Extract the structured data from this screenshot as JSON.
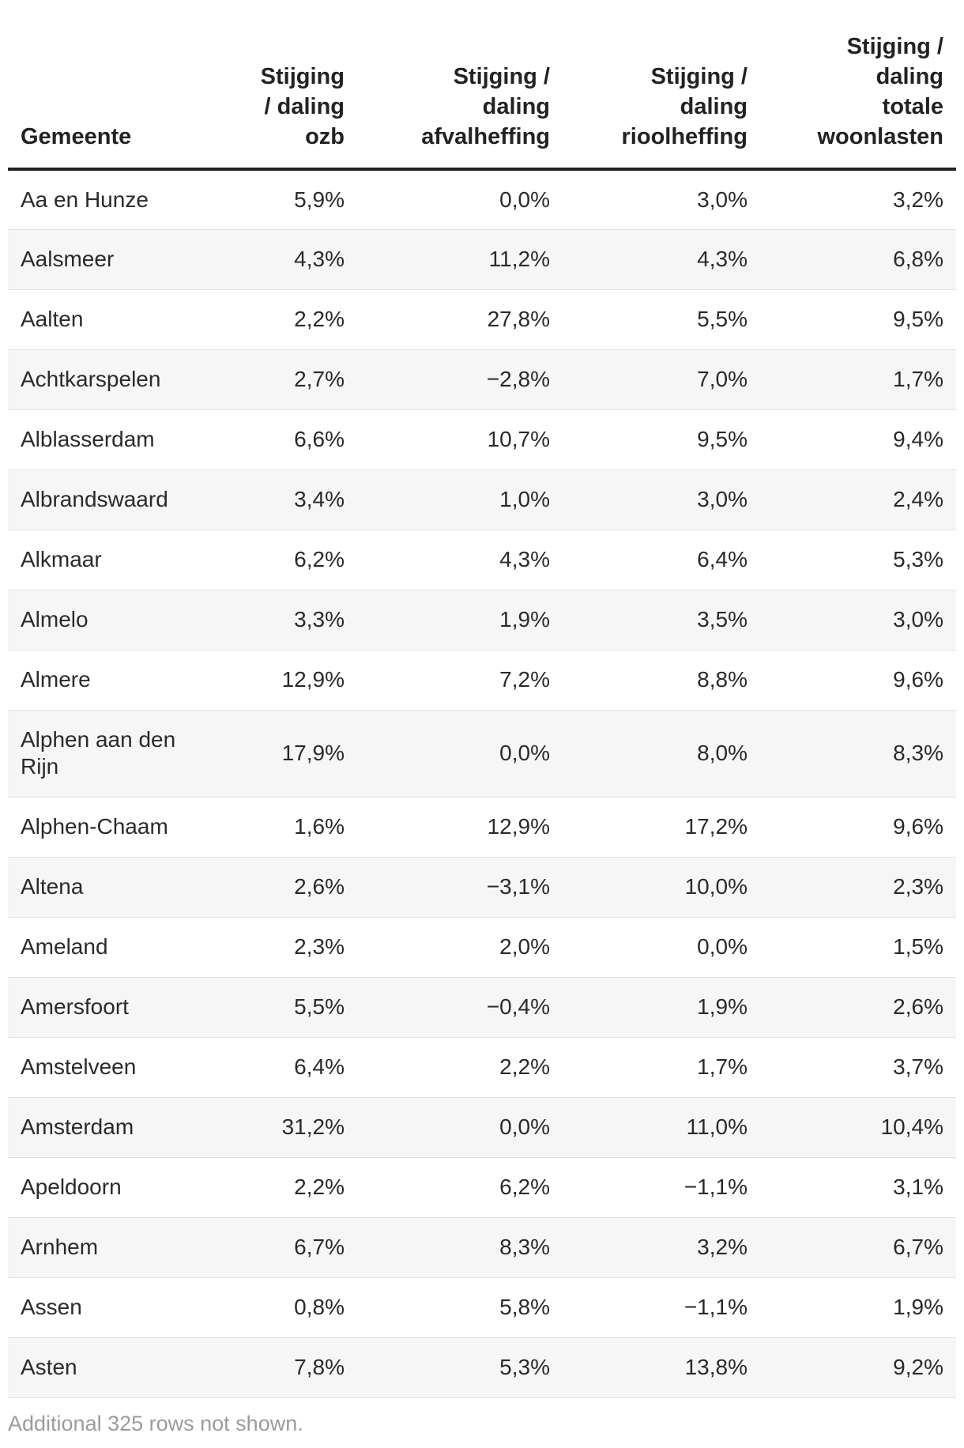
{
  "table": {
    "headers": [
      "Gemeente",
      "Stijging\n/ daling\nozb",
      "Stijging /\ndaling\nafvalheffing",
      "Stijging /\ndaling\nrioolheffing",
      "Stijging /\ndaling\ntotale\nwoonlasten"
    ],
    "rows": [
      [
        "Aa en Hunze",
        "5,9%",
        "0,0%",
        "3,0%",
        "3,2%"
      ],
      [
        "Aalsmeer",
        "4,3%",
        "11,2%",
        "4,3%",
        "6,8%"
      ],
      [
        "Aalten",
        "2,2%",
        "27,8%",
        "5,5%",
        "9,5%"
      ],
      [
        "Achtkarspelen",
        "2,7%",
        "−2,8%",
        "7,0%",
        "1,7%"
      ],
      [
        "Alblasserdam",
        "6,6%",
        "10,7%",
        "9,5%",
        "9,4%"
      ],
      [
        "Albrandswaard",
        "3,4%",
        "1,0%",
        "3,0%",
        "2,4%"
      ],
      [
        "Alkmaar",
        "6,2%",
        "4,3%",
        "6,4%",
        "5,3%"
      ],
      [
        "Almelo",
        "3,3%",
        "1,9%",
        "3,5%",
        "3,0%"
      ],
      [
        "Almere",
        "12,9%",
        "7,2%",
        "8,8%",
        "9,6%"
      ],
      [
        "Alphen aan den Rijn",
        "17,9%",
        "0,0%",
        "8,0%",
        "8,3%"
      ],
      [
        "Alphen-Chaam",
        "1,6%",
        "12,9%",
        "17,2%",
        "9,6%"
      ],
      [
        "Altena",
        "2,6%",
        "−3,1%",
        "10,0%",
        "2,3%"
      ],
      [
        "Ameland",
        "2,3%",
        "2,0%",
        "0,0%",
        "1,5%"
      ],
      [
        "Amersfoort",
        "5,5%",
        "−0,4%",
        "1,9%",
        "2,6%"
      ],
      [
        "Amstelveen",
        "6,4%",
        "2,2%",
        "1,7%",
        "3,7%"
      ],
      [
        "Amsterdam",
        "31,2%",
        "0,0%",
        "11,0%",
        "10,4%"
      ],
      [
        "Apeldoorn",
        "2,2%",
        "6,2%",
        "−1,1%",
        "3,1%"
      ],
      [
        "Arnhem",
        "6,7%",
        "8,3%",
        "3,2%",
        "6,7%"
      ],
      [
        "Assen",
        "0,8%",
        "5,8%",
        "−1,1%",
        "1,9%"
      ],
      [
        "Asten",
        "7,8%",
        "5,3%",
        "13,8%",
        "9,2%"
      ]
    ]
  },
  "footnote": "Additional 325 rows not shown."
}
